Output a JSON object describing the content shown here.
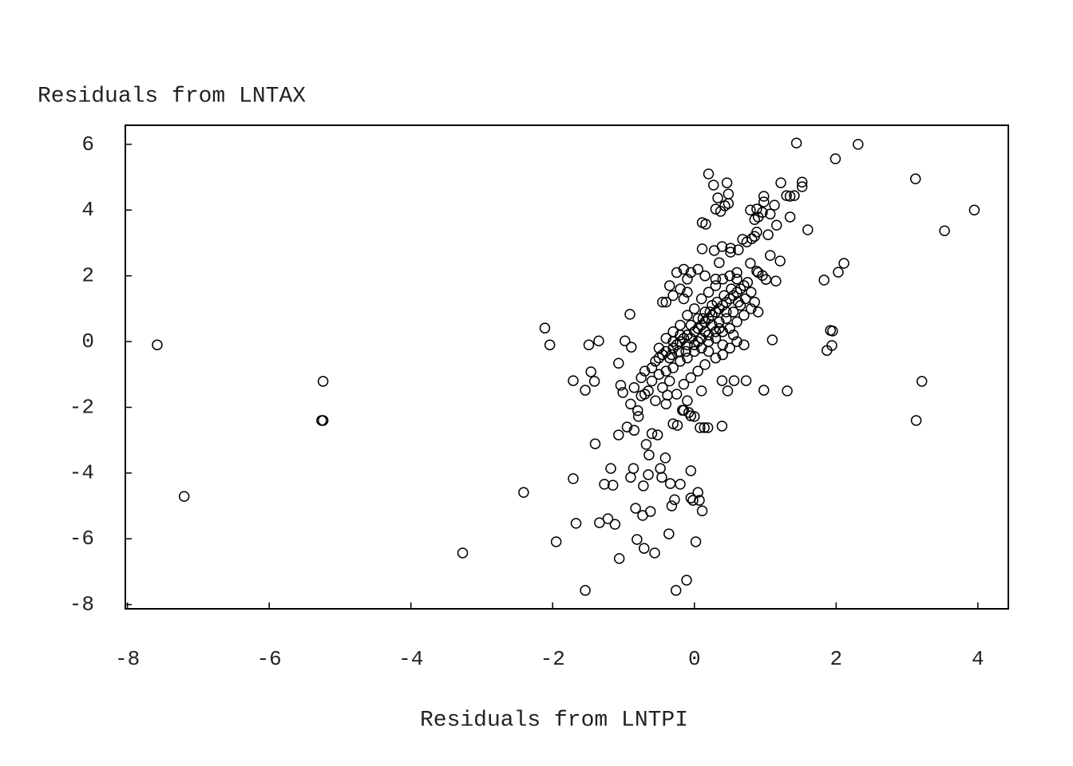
{
  "chart_data": {
    "type": "scatter",
    "x_label": "Residuals from LNTPI",
    "y_label": "Residuals from LNTAX",
    "color": "#000000",
    "grid": false,
    "xlim": [
      -8.03,
      4.43
    ],
    "ylim": [
      -8.13,
      6.58
    ],
    "xticks": [
      -8,
      -6,
      -4,
      -2,
      0,
      2,
      4
    ],
    "yticks": [
      -8,
      -6,
      -4,
      -2,
      0,
      2,
      4,
      6
    ],
    "x": [
      -7.58,
      -7.2,
      -5.24,
      -5.26,
      -5.24,
      -3.27,
      -2.41,
      -2.11,
      -2.04,
      -1.95,
      -1.71,
      -1.71,
      -1.67,
      -1.54,
      -1.54,
      -1.49,
      -1.46,
      -1.41,
      -1.4,
      -1.35,
      -1.34,
      -1.27,
      -1.22,
      -1.18,
      -1.15,
      -1.12,
      -1.07,
      -1.07,
      -1.06,
      -1.04,
      -1.01,
      -0.98,
      -0.91,
      -0.9,
      -0.89,
      -0.86,
      -0.83,
      -0.81,
      -0.79,
      -0.75,
      -0.73,
      -0.72,
      -0.71,
      -0.68,
      -0.65,
      -0.64,
      -0.62,
      -0.56,
      -0.52,
      -0.48,
      -0.46,
      -0.41,
      -0.38,
      -0.36,
      -0.34,
      -0.32,
      -0.28,
      -0.26,
      -0.24,
      -0.2,
      -0.17,
      -0.15,
      -0.11,
      -0.08,
      -0.05,
      -0.05,
      -0.02,
      0.02,
      0.05,
      0.07,
      0.11,
      -0.05,
      0,
      0.08,
      0.14,
      0.19,
      0.39,
      0.39,
      0.47,
      0.56,
      0.73,
      0.98,
      1.31,
      1.1,
      3.21,
      3.13,
      0.2,
      0.27,
      0.46,
      0.48,
      0.48,
      0.43,
      0.33,
      0.37,
      0.3,
      0.11,
      0.16,
      0.11,
      0.28,
      0.39,
      0.51,
      0.51,
      0.62,
      0.68,
      0.74,
      0.81,
      0.85,
      0.88,
      0.79,
      0.85,
      0.88,
      0.9,
      0.96,
      0.98,
      0.98,
      1.07,
      1.13,
      1.16,
      1.22,
      1.3,
      1.35,
      1.41,
      1.35,
      1.04,
      1.07,
      1.21,
      1.15,
      1.01,
      0.96,
      0.88,
      0.79,
      1.52,
      1.52,
      1.6,
      1.83,
      2.03,
      2.11,
      1.87,
      1.94,
      1.95,
      1.92,
      1.99,
      1.44,
      2.31,
      3.12,
      3.53,
      3.95,
      -0.6,
      -0.55,
      -0.5,
      -0.45,
      -0.4,
      -0.35,
      -0.3,
      -0.25,
      -0.2,
      -0.15,
      -0.1,
      -0.05,
      0,
      0.05,
      0.1,
      0.15,
      0.2,
      0.25,
      0.3,
      0.35,
      0.4,
      0.45,
      0.5,
      0.55,
      0.6,
      0.65,
      0.7,
      0.75,
      -0.5,
      -0.4,
      -0.3,
      -0.2,
      -0.1,
      0,
      0.1,
      0.2,
      0.3,
      0.4,
      -0.2,
      -0.1,
      -0.05,
      0.05,
      0.15,
      -0.15,
      0.5,
      0.6,
      -0.6,
      -0.5,
      -0.4,
      -0.3,
      -0.2,
      -0.1,
      0,
      0.1,
      0.2,
      0.3,
      0.4,
      0.5,
      0.6,
      0.7,
      0.8,
      0.6,
      0.7,
      0.5,
      0.4,
      0.3,
      0.2,
      -0.7,
      -0.75,
      -0.65,
      -0.55,
      -0.45,
      -0.35,
      -0.25,
      -0.15,
      -0.05,
      0.05,
      0.15,
      0.1,
      -0.1,
      -0.4,
      -0.7,
      -0.85,
      -0.9,
      -0.8,
      -0.95,
      -0.85,
      -0.6,
      -0.3,
      -0.05,
      0.05,
      0.15,
      0.25,
      0.35,
      0.45,
      0.25,
      0.15,
      0.05,
      -0.1,
      -0.2,
      -0.3,
      0.35,
      0.45,
      0.55,
      0.65,
      0.3,
      0.2,
      0.1,
      0,
      -0.12,
      -0.22,
      -0.32,
      0.12,
      0.22,
      0.32,
      0.42,
      0.52,
      0.62,
      0.72,
      0.8,
      0.85,
      0.9,
      0.4,
      0.55,
      -0.4,
      -0.3,
      -0.35,
      -0.25,
      -0.45,
      -0.15,
      0.35,
      0.6,
      0.9,
      0.3,
      -0.1
    ],
    "values": [
      -0.1,
      -4.71,
      -1.21,
      -2.4,
      -2.4,
      -6.43,
      -4.59,
      0.41,
      -0.1,
      -6.09,
      -1.19,
      -4.17,
      -5.53,
      -7.57,
      -1.48,
      -0.1,
      -0.92,
      -1.21,
      -3.11,
      0.02,
      -5.51,
      -4.34,
      -5.39,
      -3.86,
      -4.37,
      -5.56,
      -2.84,
      -0.66,
      -6.6,
      -1.33,
      -1.55,
      0.02,
      0.83,
      -4.13,
      -0.17,
      -3.86,
      -5.07,
      -6.02,
      -2.28,
      -1.65,
      -5.29,
      -4.39,
      -6.29,
      -3.13,
      -4.05,
      -3.45,
      -5.17,
      -6.43,
      -2.84,
      -3.86,
      -4.13,
      -3.54,
      -1.63,
      -5.85,
      -4.32,
      -5.0,
      -4.81,
      -7.57,
      -2.55,
      -4.34,
      -2.09,
      -2.09,
      -7.26,
      -2.16,
      -3.93,
      -4.76,
      -4.83,
      -6.09,
      -4.59,
      -4.83,
      -5.15,
      -2.26,
      -2.28,
      -2.62,
      -2.62,
      -2.62,
      -2.57,
      -1.19,
      -1.5,
      -1.19,
      -1.19,
      -1.48,
      -1.5,
      0.05,
      -1.21,
      -2.4,
      5.1,
      4.76,
      4.83,
      4.49,
      4.2,
      4.13,
      4.37,
      3.96,
      4.03,
      3.62,
      3.57,
      2.82,
      2.77,
      2.89,
      2.84,
      2.72,
      2.79,
      3.11,
      3.03,
      3.13,
      3.2,
      3.33,
      4.0,
      3.71,
      4.03,
      3.79,
      3.93,
      4.42,
      4.25,
      3.88,
      4.15,
      3.54,
      4.83,
      4.44,
      4.42,
      4.44,
      3.79,
      3.25,
      2.62,
      2.45,
      1.84,
      1.89,
      2.01,
      2.14,
      2.38,
      4.85,
      4.71,
      3.4,
      1.87,
      2.11,
      2.38,
      -0.27,
      -0.12,
      0.32,
      0.34,
      5.56,
      6.04,
      6.0,
      4.95,
      3.37,
      4.0,
      -0.8,
      -0.6,
      -0.5,
      -0.4,
      -0.3,
      -0.5,
      -0.2,
      -0.1,
      0,
      0.1,
      0.2,
      0.1,
      0.3,
      0.4,
      0.5,
      0.6,
      0.7,
      0.8,
      0.9,
      1.0,
      1.1,
      1.2,
      1.3,
      1.4,
      1.5,
      1.6,
      1.7,
      1.8,
      -0.2,
      0.1,
      0.3,
      0.5,
      0.8,
      1.0,
      1.3,
      1.5,
      1.7,
      1.9,
      1.6,
      1.9,
      2.1,
      2.2,
      2.0,
      1.3,
      2.0,
      1.9,
      -1.2,
      -1.0,
      -0.9,
      -0.8,
      -0.6,
      -0.5,
      -0.3,
      -0.2,
      0,
      0.1,
      0.3,
      0.4,
      0.6,
      0.8,
      1.0,
      0,
      -0.1,
      -0.2,
      -0.4,
      -0.5,
      -0.3,
      -0.9,
      -1.1,
      -1.5,
      -1.8,
      -1.4,
      -1.2,
      -1.6,
      -1.3,
      -1.1,
      -0.9,
      -0.7,
      -1.5,
      -1.8,
      -1.9,
      -1.6,
      -1.4,
      -1.9,
      -2.1,
      -2.6,
      -2.7,
      -2.8,
      -2.5,
      0.5,
      0.7,
      0.3,
      0.5,
      0.4,
      0.7,
      1.1,
      0.9,
      0,
      -0.1,
      0.2,
      0,
      0.6,
      0.9,
      0.9,
      1.1,
      0.3,
      0.2,
      0.1,
      -0.1,
      -0.3,
      -0.3,
      -0.4,
      0.7,
      0.9,
      1.2,
      1.4,
      1.6,
      1.2,
      1.3,
      1.5,
      1.2,
      0.9,
      -0.1,
      0.2,
      1.2,
      1.4,
      1.7,
      2.1,
      1.2,
      2.2,
      2.4,
      2.1,
      2.1,
      1.9,
      1.5
    ]
  }
}
